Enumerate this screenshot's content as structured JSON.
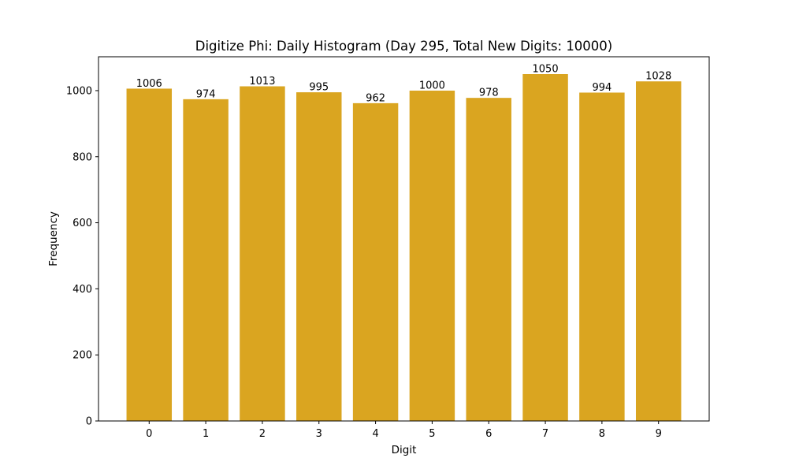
{
  "chart_data": {
    "type": "bar",
    "title": "Digitize Phi: Daily Histogram (Day 295, Total New Digits: 10000)",
    "xlabel": "Digit",
    "ylabel": "Frequency",
    "categories": [
      "0",
      "1",
      "2",
      "3",
      "4",
      "5",
      "6",
      "7",
      "8",
      "9"
    ],
    "values": [
      1006,
      974,
      1013,
      995,
      962,
      1000,
      978,
      1050,
      994,
      1028
    ],
    "data_labels": [
      "1006",
      "974",
      "1013",
      "995",
      "962",
      "1000",
      "978",
      "1050",
      "994",
      "1028"
    ],
    "yticks": [
      0,
      200,
      400,
      600,
      800,
      1000
    ],
    "ytick_labels": [
      "0",
      "200",
      "400",
      "600",
      "800",
      "1000"
    ],
    "ylim": [
      0,
      1102.5
    ],
    "bar_color": "#DAA520",
    "grid": false,
    "legend": "none"
  }
}
